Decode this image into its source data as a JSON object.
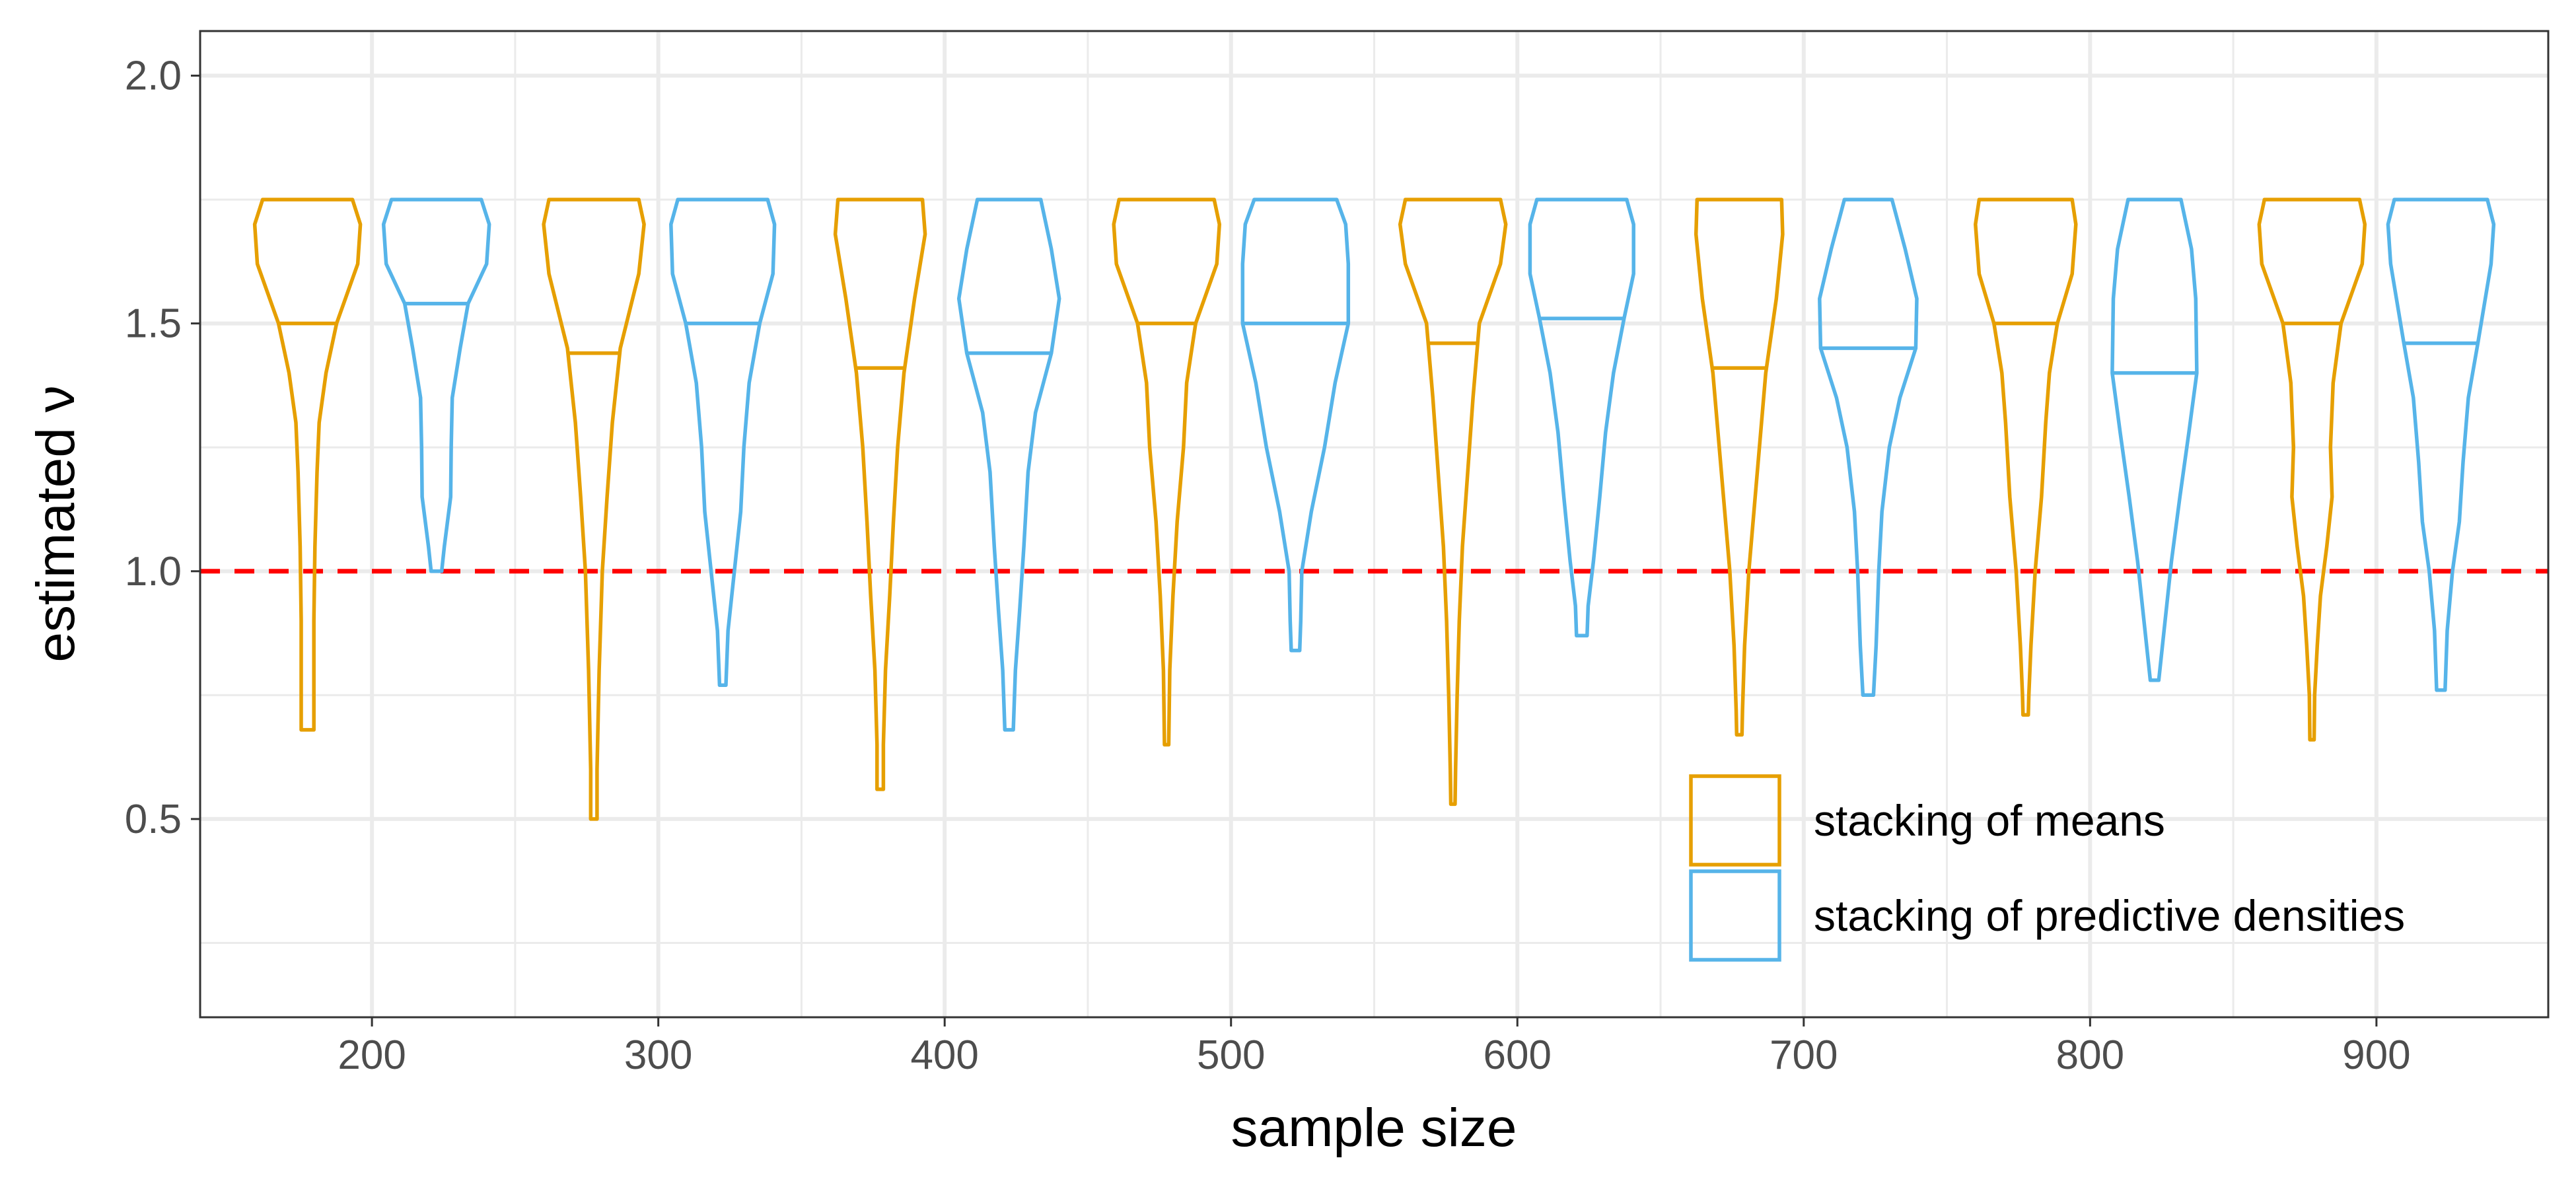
{
  "chart_data": {
    "type": "violin",
    "xlabel": "sample size",
    "ylabel": "estimated ν",
    "xlim": [
      140,
      960
    ],
    "ylim": [
      0.1,
      2.09
    ],
    "x_ticks": [
      200,
      300,
      400,
      500,
      600,
      700,
      800,
      900
    ],
    "x_tick_labels": [
      "200",
      "300",
      "400",
      "500",
      "600",
      "700",
      "800",
      "900"
    ],
    "y_ticks": [
      0.5,
      1.0,
      1.5,
      2.0
    ],
    "y_tick_labels": [
      "0.5",
      "1.0",
      "1.5",
      "2.0"
    ],
    "grid": true,
    "reference_line": {
      "y": 1.0,
      "color": "#ff0000",
      "style": "dashed"
    },
    "legend": {
      "position": "bottom-right",
      "entries": [
        {
          "label": "stacking of means",
          "color": "#E69F00"
        },
        {
          "label": "stacking of predictive densities",
          "color": "#56B4E9"
        }
      ]
    },
    "series": [
      {
        "name": "stacking of means",
        "color": "#E69F00",
        "violins": [
          {
            "x": 177.5,
            "min": 0.68,
            "max": 1.75,
            "median": 1.5,
            "profile": [
              [
                1.75,
                0.85
              ],
              [
                1.7,
                1.0
              ],
              [
                1.62,
                0.95
              ],
              [
                1.5,
                0.55
              ],
              [
                1.4,
                0.35
              ],
              [
                1.3,
                0.22
              ],
              [
                1.2,
                0.18
              ],
              [
                1.05,
                0.14
              ],
              [
                0.9,
                0.12
              ],
              [
                0.75,
                0.12
              ],
              [
                0.68,
                0.12
              ]
            ]
          },
          {
            "x": 277.5,
            "min": 0.5,
            "max": 1.75,
            "median": 1.44,
            "profile": [
              [
                1.75,
                0.85
              ],
              [
                1.7,
                0.95
              ],
              [
                1.6,
                0.85
              ],
              [
                1.45,
                0.5
              ],
              [
                1.3,
                0.35
              ],
              [
                1.15,
                0.25
              ],
              [
                1.0,
                0.16
              ],
              [
                0.8,
                0.1
              ],
              [
                0.6,
                0.06
              ],
              [
                0.5,
                0.06
              ]
            ]
          },
          {
            "x": 377.5,
            "min": 0.56,
            "max": 1.75,
            "median": 1.41,
            "profile": [
              [
                1.75,
                0.8
              ],
              [
                1.68,
                0.85
              ],
              [
                1.55,
                0.65
              ],
              [
                1.4,
                0.45
              ],
              [
                1.25,
                0.33
              ],
              [
                1.1,
                0.25
              ],
              [
                0.95,
                0.18
              ],
              [
                0.8,
                0.1
              ],
              [
                0.65,
                0.06
              ],
              [
                0.56,
                0.06
              ]
            ]
          },
          {
            "x": 477.5,
            "min": 0.65,
            "max": 1.75,
            "median": 1.5,
            "profile": [
              [
                1.75,
                0.9
              ],
              [
                1.7,
                1.0
              ],
              [
                1.62,
                0.95
              ],
              [
                1.5,
                0.55
              ],
              [
                1.38,
                0.38
              ],
              [
                1.25,
                0.32
              ],
              [
                1.1,
                0.2
              ],
              [
                0.95,
                0.12
              ],
              [
                0.8,
                0.06
              ],
              [
                0.65,
                0.04
              ]
            ]
          },
          {
            "x": 577.5,
            "min": 0.53,
            "max": 1.75,
            "median": 1.46,
            "profile": [
              [
                1.75,
                0.9
              ],
              [
                1.7,
                1.0
              ],
              [
                1.62,
                0.9
              ],
              [
                1.5,
                0.5
              ],
              [
                1.35,
                0.38
              ],
              [
                1.2,
                0.28
              ],
              [
                1.05,
                0.18
              ],
              [
                0.9,
                0.12
              ],
              [
                0.75,
                0.08
              ],
              [
                0.6,
                0.05
              ],
              [
                0.53,
                0.04
              ]
            ]
          },
          {
            "x": 677.5,
            "min": 0.67,
            "max": 1.75,
            "median": 1.41,
            "profile": [
              [
                1.75,
                0.8
              ],
              [
                1.68,
                0.82
              ],
              [
                1.55,
                0.7
              ],
              [
                1.4,
                0.5
              ],
              [
                1.3,
                0.42
              ],
              [
                1.15,
                0.3
              ],
              [
                1.0,
                0.18
              ],
              [
                0.85,
                0.1
              ],
              [
                0.72,
                0.06
              ],
              [
                0.67,
                0.05
              ]
            ]
          },
          {
            "x": 777.5,
            "min": 0.71,
            "max": 1.75,
            "median": 1.5,
            "profile": [
              [
                1.75,
                0.88
              ],
              [
                1.7,
                0.95
              ],
              [
                1.6,
                0.88
              ],
              [
                1.5,
                0.6
              ],
              [
                1.4,
                0.45
              ],
              [
                1.3,
                0.38
              ],
              [
                1.15,
                0.3
              ],
              [
                1.0,
                0.18
              ],
              [
                0.85,
                0.1
              ],
              [
                0.75,
                0.06
              ],
              [
                0.71,
                0.05
              ]
            ]
          },
          {
            "x": 877.5,
            "min": 0.66,
            "max": 1.75,
            "median": 1.5,
            "profile": [
              [
                1.75,
                0.9
              ],
              [
                1.7,
                1.0
              ],
              [
                1.62,
                0.95
              ],
              [
                1.5,
                0.55
              ],
              [
                1.38,
                0.4
              ],
              [
                1.25,
                0.35
              ],
              [
                1.15,
                0.38
              ],
              [
                1.05,
                0.28
              ],
              [
                0.95,
                0.16
              ],
              [
                0.85,
                0.1
              ],
              [
                0.75,
                0.05
              ],
              [
                0.66,
                0.04
              ]
            ]
          }
        ]
      },
      {
        "name": "stacking of predictive densities",
        "color": "#56B4E9",
        "violins": [
          {
            "x": 222.5,
            "min": 1.0,
            "max": 1.75,
            "median": 1.54,
            "profile": [
              [
                1.75,
                0.85
              ],
              [
                1.7,
                1.0
              ],
              [
                1.62,
                0.95
              ],
              [
                1.54,
                0.6
              ],
              [
                1.45,
                0.45
              ],
              [
                1.35,
                0.3
              ],
              [
                1.25,
                0.28
              ],
              [
                1.15,
                0.27
              ],
              [
                1.05,
                0.15
              ],
              [
                1.0,
                0.1
              ]
            ]
          },
          {
            "x": 322.5,
            "min": 0.77,
            "max": 1.75,
            "median": 1.5,
            "profile": [
              [
                1.75,
                0.85
              ],
              [
                1.7,
                0.98
              ],
              [
                1.6,
                0.95
              ],
              [
                1.5,
                0.7
              ],
              [
                1.38,
                0.5
              ],
              [
                1.25,
                0.4
              ],
              [
                1.12,
                0.34
              ],
              [
                1.0,
                0.22
              ],
              [
                0.88,
                0.1
              ],
              [
                0.77,
                0.06
              ]
            ]
          },
          {
            "x": 422.5,
            "min": 0.68,
            "max": 1.75,
            "median": 1.44,
            "profile": [
              [
                1.75,
                0.6
              ],
              [
                1.65,
                0.8
              ],
              [
                1.55,
                0.95
              ],
              [
                1.44,
                0.8
              ],
              [
                1.32,
                0.5
              ],
              [
                1.2,
                0.36
              ],
              [
                1.05,
                0.28
              ],
              [
                0.92,
                0.2
              ],
              [
                0.8,
                0.12
              ],
              [
                0.68,
                0.08
              ]
            ]
          },
          {
            "x": 522.5,
            "min": 0.84,
            "max": 1.75,
            "median": 1.5,
            "profile": [
              [
                1.75,
                0.78
              ],
              [
                1.7,
                0.95
              ],
              [
                1.62,
                1.0
              ],
              [
                1.5,
                1.0
              ],
              [
                1.38,
                0.75
              ],
              [
                1.25,
                0.55
              ],
              [
                1.12,
                0.3
              ],
              [
                1.0,
                0.12
              ],
              [
                0.9,
                0.1
              ],
              [
                0.84,
                0.08
              ]
            ]
          },
          {
            "x": 622.5,
            "min": 0.87,
            "max": 1.75,
            "median": 1.51,
            "profile": [
              [
                1.75,
                0.85
              ],
              [
                1.7,
                0.98
              ],
              [
                1.6,
                0.98
              ],
              [
                1.51,
                0.8
              ],
              [
                1.4,
                0.6
              ],
              [
                1.28,
                0.45
              ],
              [
                1.15,
                0.34
              ],
              [
                1.02,
                0.22
              ],
              [
                0.93,
                0.12
              ],
              [
                0.87,
                0.1
              ]
            ]
          },
          {
            "x": 722.5,
            "min": 0.75,
            "max": 1.75,
            "median": 1.45,
            "profile": [
              [
                1.75,
                0.45
              ],
              [
                1.65,
                0.7
              ],
              [
                1.55,
                0.92
              ],
              [
                1.45,
                0.9
              ],
              [
                1.35,
                0.6
              ],
              [
                1.25,
                0.4
              ],
              [
                1.12,
                0.26
              ],
              [
                1.0,
                0.2
              ],
              [
                0.85,
                0.15
              ],
              [
                0.75,
                0.1
              ]
            ]
          },
          {
            "x": 822.5,
            "min": 0.78,
            "max": 1.75,
            "median": 1.4,
            "profile": [
              [
                1.75,
                0.5
              ],
              [
                1.65,
                0.7
              ],
              [
                1.55,
                0.78
              ],
              [
                1.4,
                0.8
              ],
              [
                1.28,
                0.65
              ],
              [
                1.15,
                0.48
              ],
              [
                1.02,
                0.32
              ],
              [
                0.9,
                0.2
              ],
              [
                0.8,
                0.1
              ],
              [
                0.78,
                0.08
              ]
            ]
          },
          {
            "x": 922.5,
            "min": 0.76,
            "max": 1.75,
            "median": 1.46,
            "profile": [
              [
                1.75,
                0.88
              ],
              [
                1.7,
                1.0
              ],
              [
                1.62,
                0.95
              ],
              [
                1.46,
                0.7
              ],
              [
                1.35,
                0.52
              ],
              [
                1.22,
                0.42
              ],
              [
                1.1,
                0.35
              ],
              [
                1.0,
                0.22
              ],
              [
                0.88,
                0.12
              ],
              [
                0.76,
                0.08
              ]
            ]
          }
        ]
      }
    ]
  }
}
